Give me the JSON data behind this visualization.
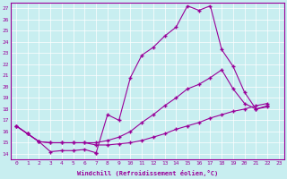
{
  "xlabel": "Windchill (Refroidissement éolien,°C)",
  "background_color": "#c8eef0",
  "line_color": "#990099",
  "xlim": [
    -0.5,
    23.5
  ],
  "ylim": [
    13.5,
    27.5
  ],
  "yticks": [
    14,
    15,
    16,
    17,
    18,
    19,
    20,
    21,
    22,
    23,
    24,
    25,
    26,
    27
  ],
  "xticks": [
    0,
    1,
    2,
    3,
    4,
    5,
    6,
    7,
    8,
    9,
    10,
    11,
    12,
    13,
    14,
    15,
    16,
    17,
    18,
    19,
    20,
    21,
    22,
    23
  ],
  "line1_y": [
    16.5,
    15.8,
    15.1,
    14.2,
    14.3,
    14.3,
    14.4,
    14.1,
    null,
    null,
    null,
    null,
    null,
    null,
    null,
    null,
    null,
    null,
    null,
    null,
    null,
    null,
    null,
    null
  ],
  "line1b_x": [
    7,
    8,
    9,
    10,
    11,
    12,
    13,
    14,
    15,
    16,
    17,
    18,
    19,
    20,
    21,
    22
  ],
  "line1b_y": [
    14.1,
    17.5,
    17.0,
    20.8,
    22.8,
    23.5,
    24.5,
    25.3,
    27.2,
    26.8,
    27.2,
    23.3,
    21.8,
    19.5,
    18.0,
    18.2
  ],
  "line2_y": [
    16.5,
    15.8,
    15.1,
    15.0,
    15.0,
    15.0,
    15.0,
    15.0,
    15.2,
    15.5,
    16.0,
    16.8,
    17.5,
    18.3,
    19.0,
    19.8,
    20.2,
    20.8,
    21.5,
    19.8,
    18.5,
    18.0,
    18.3,
    null
  ],
  "line3_y": [
    16.5,
    15.8,
    15.1,
    15.0,
    15.0,
    15.0,
    15.0,
    14.8,
    14.8,
    14.9,
    15.0,
    15.2,
    15.5,
    15.8,
    16.2,
    16.5,
    16.8,
    17.2,
    17.5,
    17.8,
    18.0,
    18.3,
    18.5,
    null
  ]
}
